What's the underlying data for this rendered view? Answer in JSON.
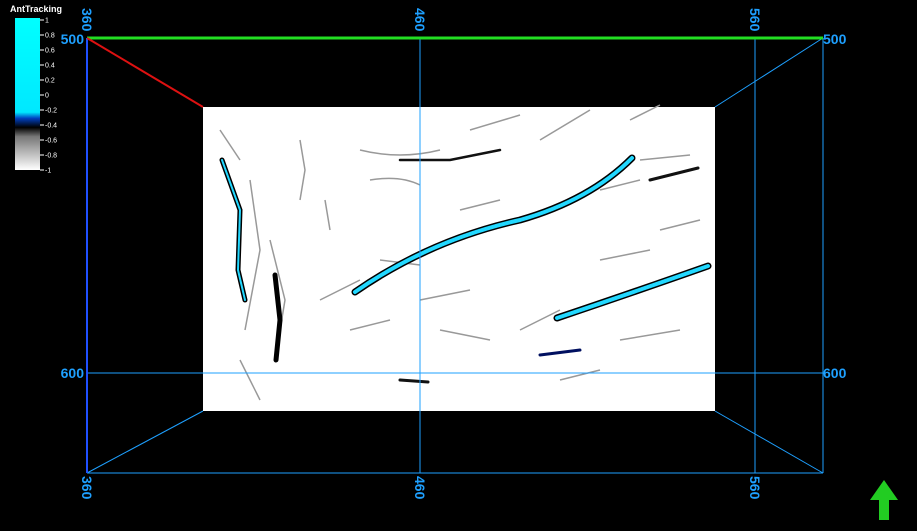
{
  "colorbar": {
    "title": "AntTracking",
    "labels": [
      1,
      0.8,
      0.6,
      0.4,
      0.2,
      0,
      -0.2,
      -0.4,
      -0.6,
      -0.8,
      -1
    ]
  },
  "axes": {
    "top": [
      360,
      460,
      560
    ],
    "bottom": [
      360,
      460,
      560
    ],
    "left": [
      500,
      600
    ],
    "right": [
      500,
      600
    ]
  }
}
